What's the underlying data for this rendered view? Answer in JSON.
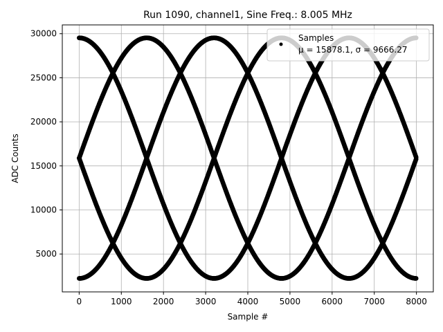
{
  "chart_data": {
    "type": "scatter",
    "title": "Run 1090, channel1, Sine Freq.: 8.005 MHz",
    "xlabel": "Sample #",
    "ylabel": "ADC Counts",
    "xlim": [
      -400,
      8400
    ],
    "ylim": [
      700,
      31000
    ],
    "xticks": [
      0,
      1000,
      2000,
      3000,
      4000,
      5000,
      6000,
      7000,
      8000
    ],
    "yticks": [
      5000,
      10000,
      15000,
      20000,
      25000,
      30000
    ],
    "grid": true,
    "legend": {
      "placement": "top-right",
      "entry_name": "Samples",
      "entry_stats": "μ = 15878.1, σ = 9666.27"
    },
    "series": [
      {
        "name": "Samples",
        "marker": "dot",
        "color": "#000000",
        "model": {
          "description": "sampled sine, 8.005 MHz, fills four phases",
          "sample_range": [
            0,
            8000
          ],
          "offset": 15878.1,
          "amplitude": 13650,
          "fullscale_period_samples": 6400,
          "phases": [
            0,
            0.25,
            0.5,
            0.75
          ]
        }
      }
    ]
  }
}
